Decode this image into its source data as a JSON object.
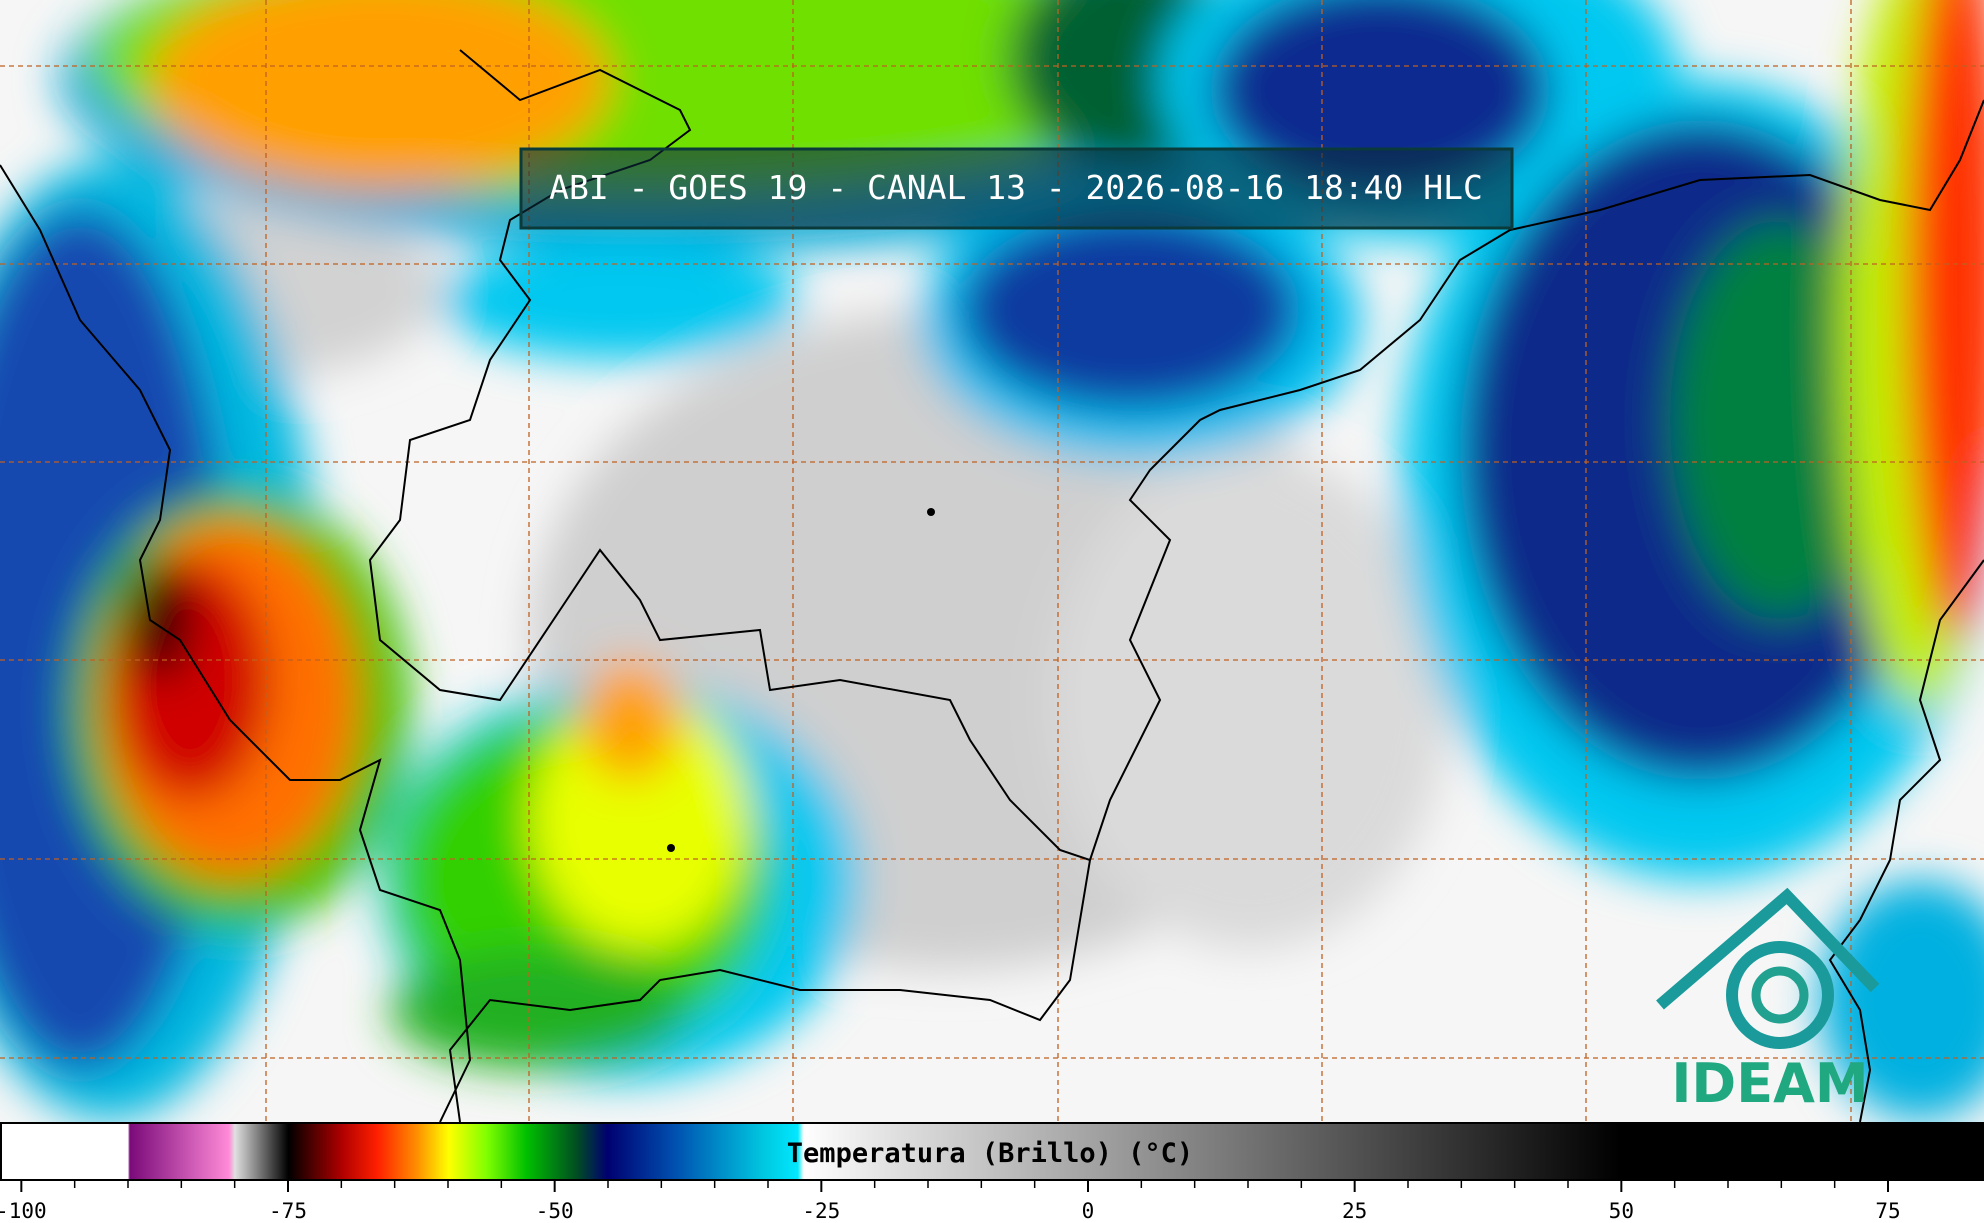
{
  "header": {
    "title": "ABI - GOES 19 - CANAL 13 - 2026-08-16 18:40 HLC"
  },
  "colorbar": {
    "label": "Temperatura (Brillo) (°C)",
    "range": [
      -102,
      84
    ],
    "ticks": [
      -100,
      -75,
      -50,
      -25,
      0,
      25,
      50,
      75
    ]
  },
  "logo": {
    "text": "IDEAM"
  }
}
